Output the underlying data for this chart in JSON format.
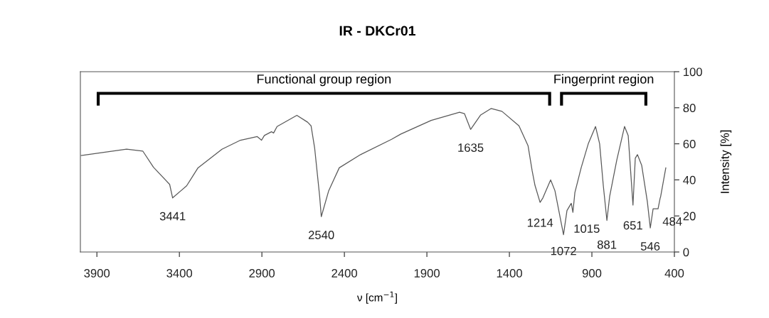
{
  "chart_data": {
    "type": "line",
    "title": "IR - DKCr01",
    "xlabel": "ν [cm$^{−1}$]",
    "ylabel": "Intensity [%]",
    "xlim": [
      4000,
      400
    ],
    "xticks": [
      3900,
      3400,
      2900,
      2400,
      1900,
      1400,
      900,
      400
    ],
    "ylim": [
      0,
      100
    ],
    "yticks": [
      0,
      20,
      40,
      60,
      80,
      100
    ],
    "grid": false,
    "legend": false,
    "marker": "none",
    "line_style": "solid",
    "series": [
      {
        "color": "#595959",
        "x": [
          3995,
          3973,
          3720,
          3622,
          3557,
          3459,
          3441,
          3356,
          3287,
          3142,
          3030,
          2928,
          2902,
          2885,
          2842,
          2829,
          2808,
          2688,
          2623,
          2602,
          2580,
          2550,
          2540,
          2495,
          2431,
          2302,
          2114,
          2058,
          1874,
          1702,
          1672,
          1635,
          1574,
          1510,
          1445,
          1342,
          1287,
          1262,
          1245,
          1214,
          1197,
          1150,
          1124,
          1072,
          1051,
          1025,
          1015,
          1003,
          965,
          922,
          878,
          853,
          831,
          809,
          792,
          749,
          702,
          680,
          651,
          637,
          624,
          598,
          564,
          546,
          529,
          499,
          486,
          484,
          452
        ],
        "values": [
          53.5,
          53.8,
          57,
          56,
          47,
          37.5,
          30,
          36.7,
          46.7,
          57,
          62,
          64,
          62,
          64.6,
          66.7,
          66,
          69.6,
          75.8,
          72,
          70,
          57.5,
          31,
          19.6,
          34,
          46.7,
          54,
          62.5,
          65.4,
          73,
          77.5,
          76.7,
          68,
          76,
          79.6,
          78,
          70,
          59,
          45,
          37,
          27.5,
          30,
          40,
          34,
          9.6,
          23,
          27,
          22,
          33,
          46.7,
          60,
          69.6,
          60,
          37,
          17.5,
          31,
          51,
          69.6,
          64.6,
          26,
          52,
          54,
          48,
          28,
          13.3,
          24,
          24,
          30,
          30.4,
          46.7
        ]
      }
    ],
    "annotations": [
      {
        "text": "3441",
        "x": 3441,
        "y": 30
      },
      {
        "text": "2540",
        "x": 2540,
        "y": 19.6
      },
      {
        "text": "1635",
        "x": 1635,
        "y": 68
      },
      {
        "text": "1214",
        "x": 1214,
        "y": 27.5
      },
      {
        "text": "1072",
        "x": 1072,
        "y": 9.6
      },
      {
        "text": "1015",
        "x": 1015,
        "y": 22
      },
      {
        "text": "881",
        "x": 809,
        "y": 17.5
      },
      {
        "text": "651",
        "x": 651,
        "y": 26
      },
      {
        "text": "546",
        "x": 546,
        "y": 13.3
      },
      {
        "text": "484",
        "x": 484,
        "y": 30.4
      },
      "Functional group region",
      "Fingerprint region"
    ]
  }
}
